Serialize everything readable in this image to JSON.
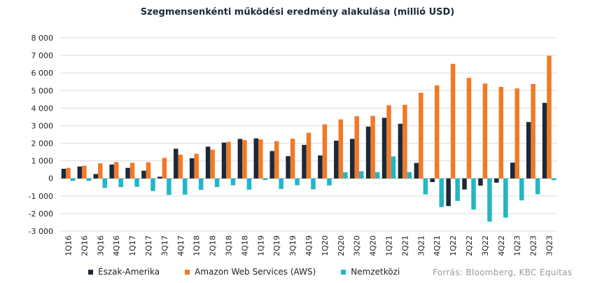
{
  "chart_data": {
    "type": "bar",
    "title": "Szegmensenkénti működési eredmény alakulása (millió USD)",
    "source": "Forrás: Bloomberg, KBC Equitas",
    "categories": [
      "1Q16",
      "2Q16",
      "3Q16",
      "4Q16",
      "1Q17",
      "2Q17",
      "3Q17",
      "4Q17",
      "1Q18",
      "2Q18",
      "3Q18",
      "4Q18",
      "1Q19",
      "2Q19",
      "3Q19",
      "4Q19",
      "1Q20",
      "2Q20",
      "3Q20",
      "4Q20",
      "1Q21",
      "2Q21",
      "3Q21",
      "4Q21",
      "1Q22",
      "2Q22",
      "3Q22",
      "4Q22",
      "1Q23",
      "2Q23",
      "3Q23"
    ],
    "series": [
      {
        "name": "Észak-Amerika",
        "color": "#1b2a3a",
        "values": [
          550,
          680,
          250,
          790,
          600,
          440,
          100,
          1690,
          1150,
          1810,
          2040,
          2250,
          2280,
          1560,
          1270,
          1910,
          1310,
          2150,
          2250,
          2950,
          3450,
          3110,
          880,
          -210,
          -1570,
          -630,
          -410,
          -240,
          900,
          3210,
          4300
        ]
      },
      {
        "name": "Amazon Web Services (AWS)",
        "color": "#f07a2a",
        "values": [
          600,
          720,
          860,
          930,
          890,
          920,
          1170,
          1350,
          1400,
          1640,
          2080,
          2180,
          2220,
          2120,
          2260,
          2600,
          3080,
          3360,
          3540,
          3560,
          4160,
          4190,
          4880,
          5290,
          6520,
          5720,
          5400,
          5210,
          5120,
          5370,
          6980
        ]
      },
      {
        "name": "Nemzetközi",
        "color": "#22b6c8",
        "values": [
          -140,
          -140,
          -540,
          -490,
          -480,
          -720,
          -940,
          -920,
          -650,
          -490,
          -390,
          -640,
          -90,
          -600,
          -390,
          -620,
          -400,
          350,
          410,
          360,
          1250,
          360,
          -910,
          -1630,
          -1280,
          -1770,
          -2460,
          -2230,
          -1250,
          -900,
          -100
        ]
      }
    ],
    "ylim": [
      -3000,
      8000
    ],
    "yticks": [
      -3000,
      -2000,
      -1000,
      0,
      1000,
      2000,
      3000,
      4000,
      5000,
      6000,
      7000,
      8000
    ],
    "ytick_labels": [
      "-3 000",
      "-2 000",
      "-1 000",
      "0",
      "1 000",
      "2 000",
      "3 000",
      "4 000",
      "5 000",
      "6 000",
      "7 000",
      "8 000"
    ],
    "legend_position": "bottom",
    "grid": true
  }
}
